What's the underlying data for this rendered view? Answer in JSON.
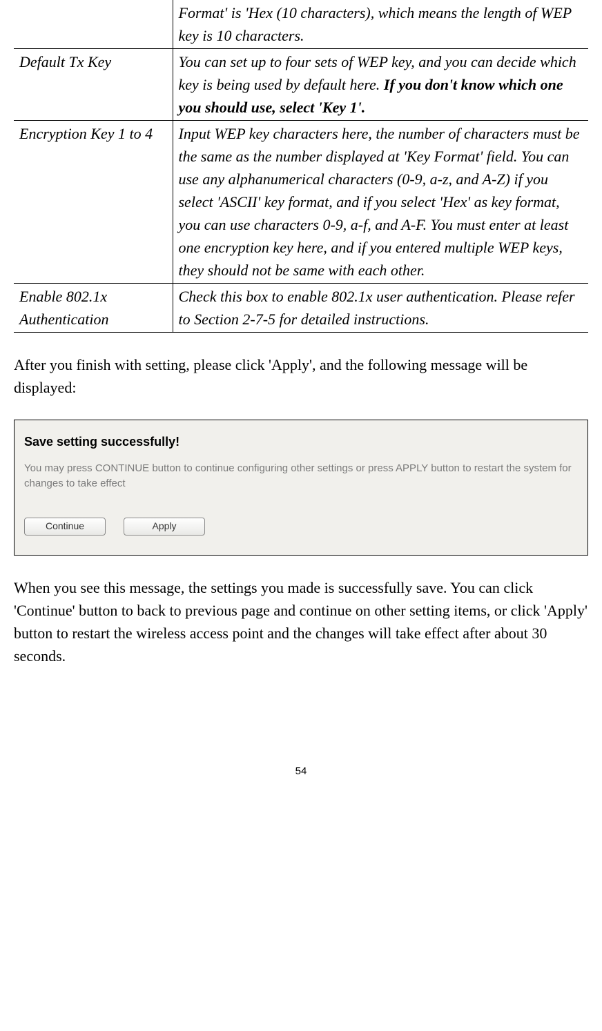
{
  "table": {
    "row0": {
      "col1": "",
      "col2": "Format' is 'Hex (10 characters), which means the length of WEP key is 10 characters."
    },
    "row1": {
      "col1": "Default Tx Key",
      "col2_part1": "You can set up to four sets of WEP key, and you can decide which key is being used by default here. ",
      "col2_bold": "If you don't know which one you should use, select 'Key 1'."
    },
    "row2": {
      "col1": "Encryption Key 1 to 4",
      "col2": "Input WEP key characters here, the number of characters must be the same as the number displayed at 'Key Format' field. You can use any alphanumerical characters (0-9, a-z, and A-Z) if you select 'ASCII' key format, and if you select 'Hex' as key format, you can use characters 0-9, a-f, and A-F. You must enter at least one encryption key here, and if you entered multiple WEP keys, they should not be same with each other."
    },
    "row3": {
      "col1": "Enable 802.1x Authentication",
      "col2": "Check this box to enable 802.1x user authentication. Please refer to Section 2-7-5 for detailed instructions."
    }
  },
  "paragraph1": "After you finish with setting, please click 'Apply', and the following message will be displayed:",
  "screenshot": {
    "title": "Save setting successfully!",
    "text": "You may press CONTINUE button to continue configuring other settings or press APPLY button to restart the system for changes to take effect",
    "continue_label": "Continue",
    "apply_label": "Apply"
  },
  "paragraph2": "When you see this message, the settings you made is successfully save. You can click 'Continue' button to back to previous page and continue on other setting items, or click 'Apply' button to restart the wireless access point and the changes will take effect after about 30 seconds.",
  "page_number": "54",
  "colors": {
    "screenshot_bg": "#f1f0ec",
    "ss_text_color": "#7a7a7a"
  }
}
